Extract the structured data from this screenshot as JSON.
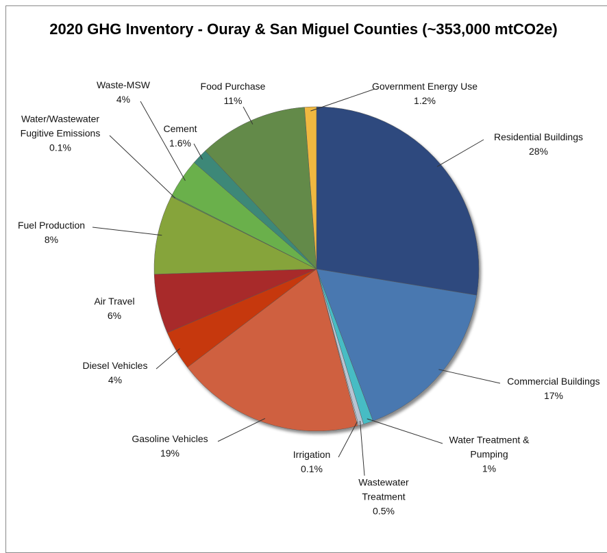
{
  "chart_data": {
    "type": "pie",
    "title": "2020 GHG Inventory - Ouray & San Miguel Counties (~353,000 mtCO2e)",
    "categories": [
      "Residential Buildings",
      "Commercial Buildings",
      "Water Treatment & Pumping",
      "Wastewater Treatment",
      "Irrigation",
      "Gasoline Vehicles",
      "Diesel Vehicles",
      "Air Travel",
      "Fuel Production",
      "Water/Wastewater Fugitive Emissions",
      "Waste-MSW",
      "Cement",
      "Food Purchase",
      "Government Energy Use"
    ],
    "values": [
      28,
      17,
      1,
      0.5,
      0.1,
      19,
      4,
      6,
      8,
      0.1,
      4,
      1.6,
      11,
      1.2
    ],
    "value_labels": [
      "28%",
      "17%",
      "1%",
      "0.5%",
      "0.1%",
      "19%",
      "4%",
      "6%",
      "8%",
      "0.1%",
      "4%",
      "1.6%",
      "11%",
      "1.2%"
    ],
    "colors": [
      "#2e4a7e",
      "#4a78b0",
      "#46bcc4",
      "#b7c4d2",
      "#d4d4d4",
      "#cf6040",
      "#c6380e",
      "#a82a2c",
      "#86a43a",
      "#5a9a52",
      "#6ab04c",
      "#3e8878",
      "#638a48",
      "#f0b840"
    ]
  }
}
